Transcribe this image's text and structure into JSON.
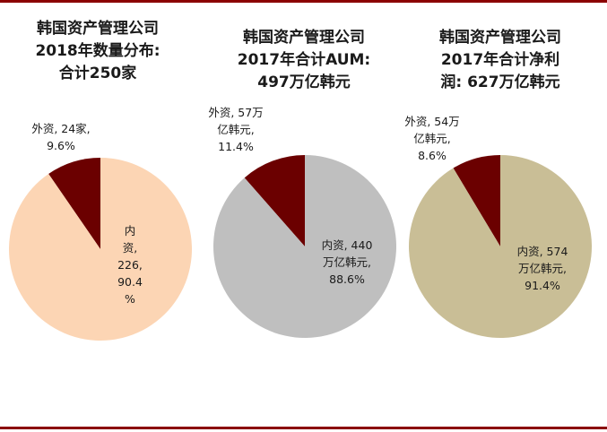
{
  "colors": {
    "rule": "#8B0000",
    "slice_foreign": "#6B0000",
    "text": "#1a1a1a"
  },
  "chart_data": [
    {
      "type": "pie",
      "title_lines": [
        "韩国资产管理公司",
        "2018年数量分布:",
        "合计250家"
      ],
      "slices": [
        {
          "name": "外资",
          "value": 24,
          "percent": 9.6,
          "color": "#6B0000",
          "label_lines": [
            "外资, 24家,",
            "9.6%"
          ]
        },
        {
          "name": "内资",
          "value": 226,
          "percent": 90.4,
          "color": "#FCD5B4",
          "label_lines": [
            "内",
            "资,",
            "226,",
            "90.4",
            "%"
          ]
        }
      ]
    },
    {
      "type": "pie",
      "title_lines": [
        "韩国资产管理公司",
        "2017年合计AUM:",
        "497万亿韩元"
      ],
      "slices": [
        {
          "name": "外资",
          "value": 57,
          "percent": 11.4,
          "color": "#6B0000",
          "label_lines": [
            "外资, 57万",
            "亿韩元,",
            "11.4%"
          ]
        },
        {
          "name": "内资",
          "value": 440,
          "percent": 88.6,
          "color": "#BFBFBF",
          "label_lines": [
            "内资, 440",
            "万亿韩元,",
            "88.6%"
          ]
        }
      ]
    },
    {
      "type": "pie",
      "title_lines": [
        "韩国资产管理公司",
        "2017年合计净利",
        "润: 627万亿韩元"
      ],
      "slices": [
        {
          "name": "外资",
          "value": 54,
          "percent": 8.6,
          "color": "#6B0000",
          "label_lines": [
            "外资, 54万",
            "亿韩元,",
            "8.6%"
          ]
        },
        {
          "name": "内资",
          "value": 574,
          "percent": 91.4,
          "color": "#C9BE96",
          "label_lines": [
            "内资, 574",
            "万亿韩元,",
            "91.4%"
          ]
        }
      ]
    }
  ]
}
